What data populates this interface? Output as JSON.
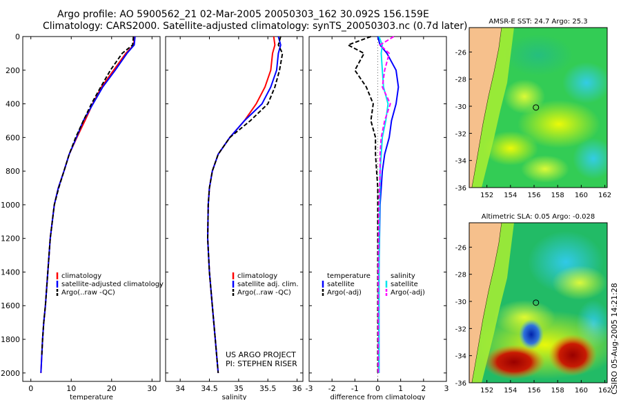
{
  "header": {
    "line1": "Argo profile: AO 5900562_21 02-Mar-2005 20050303_162 30.092S 156.159E",
    "line2": "Climatology: CARS2000. Satellite-adjusted climatology: synTS_20050303.nc (0.7d later)"
  },
  "footer": {
    "credit": "CSIRO 05-Aug-2005 14:21:28",
    "project_line1": "US ARGO PROJECT",
    "project_line2": "PI: STEPHEN RISER"
  },
  "colors": {
    "climatology": "#ff0000",
    "satellite": "#0000ff",
    "argo": "#000000",
    "sal_sat": "#00e5ee",
    "sal_argo": "#ff00ff",
    "land": "#f6c08c"
  },
  "chart_data": [
    {
      "id": "temperature",
      "type": "line",
      "xlabel": "temperature",
      "xlim": [
        -2,
        32
      ],
      "ylim": [
        0,
        2050
      ],
      "xticks": [
        0,
        10,
        20,
        30
      ],
      "yticks": [
        0,
        200,
        400,
        600,
        800,
        1000,
        1200,
        1400,
        1600,
        1800,
        2000
      ],
      "legend": [
        "climatology",
        "satellite-adjusted climatology",
        "Argo(..raw -QC)"
      ],
      "series": [
        {
          "name": "climatology",
          "style": "solid",
          "color": "#ff0000",
          "x": [
            25.6,
            25.5,
            23.5,
            20.5,
            17.5,
            15.3,
            13.4,
            11.4,
            9.5,
            8.2,
            6.8,
            5.8,
            4.8,
            4.2,
            3.6,
            3.2,
            2.9,
            2.7,
            2.5
          ],
          "y": [
            0,
            50,
            100,
            200,
            300,
            400,
            500,
            600,
            700,
            800,
            900,
            1000,
            1200,
            1400,
            1600,
            1700,
            1800,
            1900,
            2000
          ]
        },
        {
          "name": "satellite-adjusted climatology",
          "style": "solid",
          "color": "#0000ff",
          "x": [
            25.8,
            25.6,
            23.8,
            20.9,
            17.8,
            15.4,
            13.0,
            11.3,
            9.5,
            8.2,
            6.8,
            5.8,
            4.8,
            4.2,
            3.6,
            3.2,
            2.9,
            2.7,
            2.5
          ],
          "y": [
            0,
            50,
            100,
            200,
            300,
            400,
            500,
            600,
            700,
            800,
            900,
            1000,
            1200,
            1400,
            1600,
            1700,
            1800,
            1900,
            2000
          ]
        },
        {
          "name": "Argo(..raw -QC)",
          "style": "dashed",
          "color": "#000000",
          "x": [
            25.4,
            25.2,
            22.6,
            19.7,
            17.3,
            15.0,
            13.0,
            11.1,
            9.5,
            8.2,
            6.9,
            5.8,
            4.8,
            4.2,
            3.6,
            3.2,
            2.9,
            2.7
          ],
          "y": [
            0,
            50,
            100,
            200,
            300,
            400,
            500,
            600,
            700,
            800,
            900,
            1000,
            1200,
            1400,
            1600,
            1700,
            1800,
            1900
          ]
        }
      ]
    },
    {
      "id": "salinity",
      "type": "line",
      "xlabel": "salinity",
      "xlim": [
        33.75,
        36.1
      ],
      "ylim": [
        0,
        2050
      ],
      "xticks": [
        34,
        34.5,
        35,
        35.5,
        36
      ],
      "xticklabels": [
        "34",
        "34.5",
        "35",
        "35.5",
        "36 "
      ],
      "legend": [
        "climatology",
        "satellite adj. clim.",
        "Argo(..raw -QC)"
      ],
      "series": [
        {
          "name": "climatology",
          "style": "solid",
          "color": "#ff0000",
          "x": [
            35.6,
            35.62,
            35.58,
            35.55,
            35.45,
            35.3,
            35.1,
            34.85,
            34.65,
            34.55,
            34.5,
            34.48,
            34.47,
            34.5,
            34.55,
            34.6,
            34.65
          ],
          "y": [
            0,
            50,
            100,
            200,
            300,
            400,
            500,
            600,
            700,
            800,
            900,
            1000,
            1200,
            1400,
            1600,
            1800,
            2000
          ]
        },
        {
          "name": "satellite adj. clim.",
          "style": "solid",
          "color": "#0000ff",
          "x": [
            35.68,
            35.72,
            35.68,
            35.65,
            35.55,
            35.4,
            35.1,
            34.85,
            34.65,
            34.55,
            34.5,
            34.48,
            34.47,
            34.5,
            34.55,
            34.6,
            34.65
          ],
          "y": [
            0,
            50,
            100,
            200,
            300,
            400,
            500,
            600,
            700,
            800,
            900,
            1000,
            1200,
            1400,
            1600,
            1800,
            2000
          ]
        },
        {
          "name": "Argo(..raw -QC)",
          "style": "dashed",
          "color": "#000000",
          "x": [
            35.72,
            35.68,
            35.75,
            35.7,
            35.62,
            35.5,
            35.2,
            34.85,
            34.65,
            34.55,
            34.5,
            34.48,
            34.47,
            34.5,
            34.55,
            34.6,
            34.65
          ],
          "y": [
            0,
            50,
            100,
            200,
            300,
            400,
            500,
            600,
            700,
            800,
            900,
            1000,
            1200,
            1400,
            1600,
            1800,
            2000
          ]
        }
      ]
    },
    {
      "id": "difference",
      "type": "line",
      "xlabel": "difference from climatology",
      "xlim": [
        -3,
        3
      ],
      "ylim": [
        0,
        2050
      ],
      "xticks": [
        -3,
        -2,
        -1,
        0,
        1,
        2,
        3
      ],
      "legend": [
        "temperature",
        "satellite",
        "Argo(-adj)",
        "salinity",
        "satellite",
        "Argo(-adj)"
      ],
      "series": [
        {
          "name": "temperature satellite",
          "style": "solid",
          "color": "#0000ff",
          "x": [
            0,
            0.1,
            0.4,
            0.8,
            0.9,
            0.8,
            0.6,
            0.5,
            0.3,
            0.2,
            0.15,
            0.1,
            0.05,
            0.05,
            0.05
          ],
          "y": [
            0,
            50,
            100,
            200,
            300,
            400,
            500,
            600,
            700,
            800,
            900,
            1000,
            1400,
            1800,
            2000
          ]
        },
        {
          "name": "temperature Argo(-adj)",
          "style": "dashed",
          "color": "#000000",
          "x": [
            -0.3,
            -1.3,
            -0.6,
            -1.0,
            -0.5,
            -0.2,
            -0.3,
            -0.1,
            -0.1,
            -0.05,
            0,
            0,
            0,
            0,
            0
          ],
          "y": [
            0,
            50,
            100,
            200,
            300,
            400,
            500,
            600,
            700,
            800,
            900,
            1000,
            1400,
            1800,
            2000
          ]
        },
        {
          "name": "salinity satellite",
          "style": "solid",
          "color": "#00e5ee",
          "x": [
            0.05,
            0.2,
            0.15,
            0.2,
            0.25,
            0.45,
            0.35,
            0.2,
            0.15,
            0.1,
            0.1,
            0.08,
            0.05,
            0.05,
            0.05
          ],
          "y": [
            0,
            50,
            100,
            200,
            300,
            400,
            500,
            600,
            700,
            800,
            900,
            1000,
            1400,
            1800,
            2000
          ]
        },
        {
          "name": "salinity Argo(-adj)",
          "style": "dashed",
          "color": "#ff00ff",
          "x": [
            0.7,
            0.1,
            0.5,
            0.3,
            0.2,
            0.55,
            0.3,
            0.15,
            0.1,
            0.1,
            0.08,
            0.05,
            0.02,
            0.02,
            0.02
          ],
          "y": [
            0,
            50,
            100,
            200,
            300,
            400,
            500,
            600,
            700,
            800,
            900,
            1000,
            1400,
            1800,
            2000
          ]
        }
      ]
    },
    {
      "id": "sst_map",
      "type": "heatmap",
      "title": "AMSR-E SST: 24.7 Argo: 25.3",
      "xlim": [
        150.5,
        162.2
      ],
      "ylim": [
        -36,
        -24.2
      ],
      "xticks": [
        152,
        154,
        156,
        158,
        160,
        162
      ],
      "yticks": [
        -26,
        -28,
        -30,
        -32,
        -34,
        -36
      ],
      "marker": {
        "lon": 156.159,
        "lat": -30.092
      }
    },
    {
      "id": "sla_map",
      "type": "heatmap",
      "title": "Altimetric SLA: 0.05 Argo: -0.028",
      "xlim": [
        150.5,
        162.2
      ],
      "ylim": [
        -36,
        -24.2
      ],
      "xticks": [
        152,
        154,
        156,
        158,
        160,
        162
      ],
      "yticks": [
        -26,
        -28,
        -30,
        -32,
        -34,
        -36
      ],
      "marker": {
        "lon": 156.159,
        "lat": -30.092
      }
    }
  ]
}
